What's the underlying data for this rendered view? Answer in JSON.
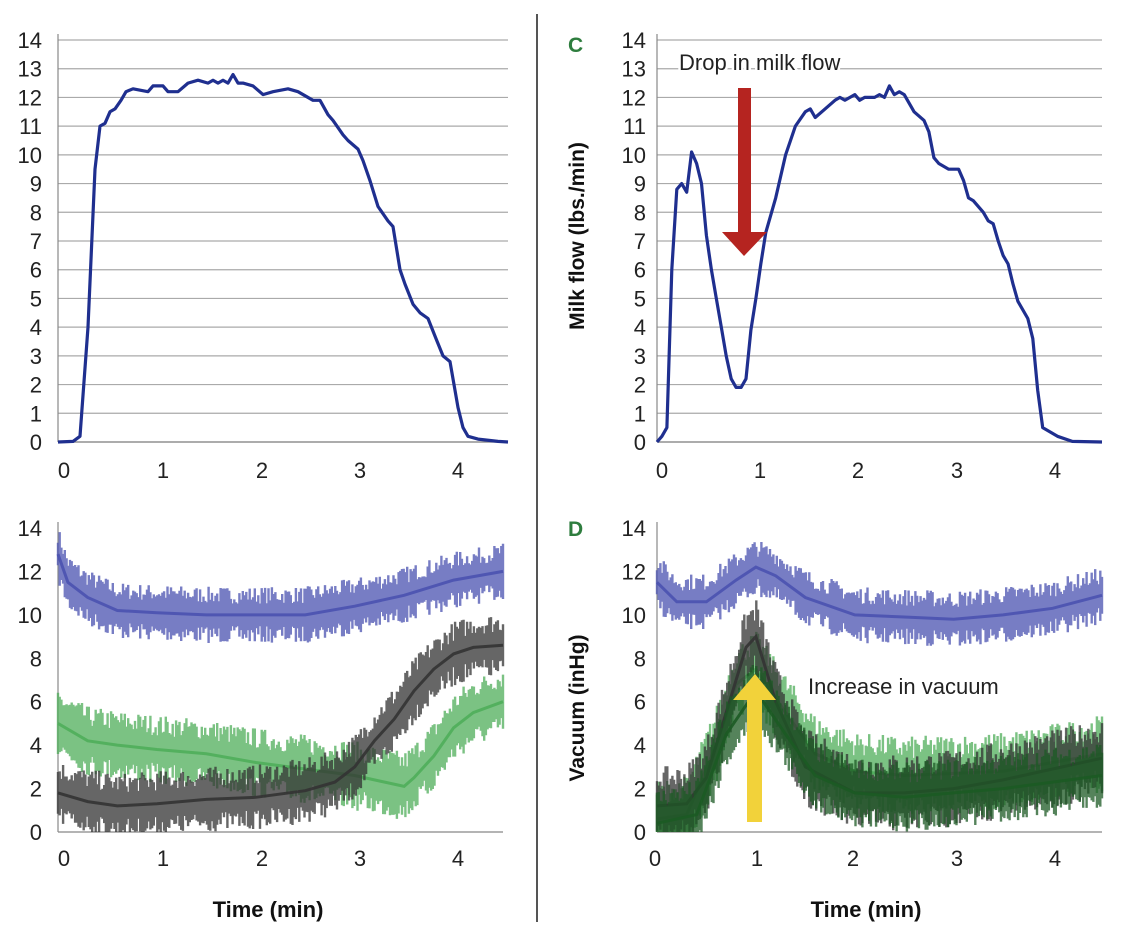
{
  "colors": {
    "flow_line": "#1f2f8f",
    "vacuum_blue": "#4a52b0",
    "vacuum_green": "#4fae5a",
    "vacuum_black": "#333333",
    "vacuum_dark_green": "#1c5a24",
    "red_arrow": "#b52420",
    "yellow_arrow": "#f2d23a",
    "grid": "#aaaaaa",
    "panel_label": "#2e7d3e"
  },
  "chart_data": [
    {
      "id": "top-left",
      "type": "line",
      "panel_label": "",
      "ylabel": "",
      "xlabel": "",
      "xlim": [
        0,
        4.5
      ],
      "ylim": [
        0,
        14
      ],
      "xticks": [
        "0",
        "1",
        "2",
        "3",
        "4"
      ],
      "yticks": [
        "0",
        "1",
        "2",
        "3",
        "4",
        "5",
        "6",
        "7",
        "8",
        "9",
        "10",
        "11",
        "12",
        "13",
        "14"
      ],
      "grid": "horizontal",
      "series": [
        {
          "name": "Milk flow",
          "color": "#1f2f8f",
          "x": [
            0,
            0.15,
            0.22,
            0.3,
            0.37,
            0.42,
            0.47,
            0.52,
            0.57,
            0.63,
            0.68,
            0.75,
            0.9,
            0.95,
            1.05,
            1.1,
            1.2,
            1.3,
            1.4,
            1.5,
            1.55,
            1.6,
            1.65,
            1.7,
            1.75,
            1.8,
            1.85,
            1.95,
            2.05,
            2.15,
            2.3,
            2.4,
            2.55,
            2.62,
            2.7,
            2.75,
            2.85,
            2.9,
            3.0,
            3.05,
            3.12,
            3.2,
            3.3,
            3.35,
            3.42,
            3.47,
            3.55,
            3.62,
            3.7,
            3.78,
            3.85,
            3.92,
            4.0,
            4.05,
            4.1,
            4.2,
            4.4,
            4.5
          ],
          "y": [
            0,
            0.02,
            0.2,
            4.0,
            9.5,
            11.0,
            11.1,
            11.5,
            11.6,
            11.9,
            12.2,
            12.3,
            12.2,
            12.4,
            12.4,
            12.2,
            12.2,
            12.5,
            12.6,
            12.5,
            12.6,
            12.5,
            12.6,
            12.5,
            12.8,
            12.5,
            12.5,
            12.4,
            12.1,
            12.2,
            12.3,
            12.2,
            11.9,
            11.9,
            11.4,
            11.2,
            10.7,
            10.5,
            10.2,
            9.8,
            9.1,
            8.2,
            7.7,
            7.5,
            6.0,
            5.5,
            4.8,
            4.5,
            4.3,
            3.6,
            3.0,
            2.8,
            1.2,
            0.5,
            0.2,
            0.1,
            0.02,
            0
          ]
        }
      ]
    },
    {
      "id": "top-right",
      "type": "line",
      "panel_label": "C",
      "ylabel": "Milk flow (lbs./min)",
      "xlabel": "",
      "xlim": [
        0,
        4.5
      ],
      "ylim": [
        0,
        14
      ],
      "xticks": [
        "0",
        "1",
        "2",
        "3",
        "4"
      ],
      "yticks": [
        "0",
        "1",
        "2",
        "3",
        "4",
        "5",
        "6",
        "7",
        "8",
        "9",
        "10",
        "11",
        "12",
        "13",
        "14"
      ],
      "grid": "horizontal",
      "annotation": "Drop in milk flow",
      "series": [
        {
          "name": "Milk flow",
          "color": "#1f2f8f",
          "x": [
            0,
            0.05,
            0.1,
            0.15,
            0.2,
            0.25,
            0.3,
            0.35,
            0.4,
            0.45,
            0.5,
            0.55,
            0.6,
            0.65,
            0.7,
            0.75,
            0.8,
            0.85,
            0.9,
            0.95,
            1.0,
            1.05,
            1.1,
            1.2,
            1.3,
            1.35,
            1.4,
            1.5,
            1.55,
            1.6,
            1.7,
            1.8,
            1.85,
            1.9,
            2.0,
            2.05,
            2.1,
            2.2,
            2.25,
            2.3,
            2.35,
            2.4,
            2.45,
            2.5,
            2.6,
            2.7,
            2.75,
            2.8,
            2.85,
            2.95,
            3.05,
            3.1,
            3.15,
            3.2,
            3.3,
            3.35,
            3.4,
            3.45,
            3.5,
            3.55,
            3.6,
            3.65,
            3.75,
            3.8,
            3.85,
            3.9,
            4.05,
            4.2,
            4.5
          ],
          "y": [
            0,
            0.2,
            0.5,
            6.0,
            8.8,
            9.0,
            8.7,
            10.1,
            9.7,
            9.0,
            7.2,
            6.0,
            5.0,
            4.0,
            3.0,
            2.2,
            1.9,
            1.9,
            2.2,
            3.9,
            5.0,
            6.2,
            7.3,
            8.5,
            10.0,
            10.5,
            11.0,
            11.5,
            11.6,
            11.3,
            11.6,
            11.9,
            12.0,
            11.9,
            12.1,
            11.9,
            12.0,
            12.0,
            12.1,
            12.0,
            12.4,
            12.1,
            12.2,
            12.1,
            11.5,
            11.2,
            10.8,
            9.9,
            9.7,
            9.5,
            9.5,
            9.1,
            8.5,
            8.4,
            8.0,
            7.7,
            7.6,
            7.0,
            6.5,
            6.2,
            5.5,
            4.9,
            4.3,
            3.6,
            1.8,
            0.5,
            0.2,
            0.02,
            0
          ]
        }
      ]
    },
    {
      "id": "bottom-left",
      "type": "line",
      "panel_label": "",
      "ylabel": "",
      "xlabel": "Time (min)",
      "xlim": [
        0,
        4.5
      ],
      "ylim": [
        0,
        14
      ],
      "xticks": [
        "0",
        "1",
        "2",
        "3",
        "4"
      ],
      "yticks": [
        "0",
        "2",
        "4",
        "6",
        "8",
        "10",
        "12",
        "14"
      ],
      "grid": "none",
      "series": [
        {
          "name": "Vacuum (blue trace)",
          "color": "#4a52b0",
          "amplitude": 1.3,
          "x": [
            0,
            0.1,
            0.3,
            0.6,
            1.0,
            1.5,
            2.0,
            2.5,
            3.0,
            3.5,
            4.0,
            4.5
          ],
          "y": [
            12.8,
            11.5,
            10.8,
            10.2,
            10.1,
            10.0,
            10.0,
            10.0,
            10.4,
            10.9,
            11.6,
            12.0
          ]
        },
        {
          "name": "Vacuum (green trace)",
          "color": "#4fae5a",
          "amplitude": 1.6,
          "x": [
            0,
            0.3,
            0.6,
            1.0,
            1.5,
            2.0,
            2.5,
            3.0,
            3.2,
            3.5,
            3.6,
            3.8,
            4.0,
            4.2,
            4.5
          ],
          "y": [
            5.0,
            4.2,
            4.0,
            3.8,
            3.6,
            3.2,
            2.9,
            2.6,
            2.4,
            2.1,
            2.5,
            3.5,
            4.8,
            5.5,
            6.0
          ]
        },
        {
          "name": "Vacuum (black trace)",
          "color": "#333333",
          "amplitude": 1.5,
          "x": [
            0,
            0.3,
            0.6,
            1.0,
            1.5,
            2.0,
            2.5,
            2.8,
            3.0,
            3.2,
            3.4,
            3.6,
            3.8,
            4.0,
            4.2,
            4.5
          ],
          "y": [
            1.8,
            1.4,
            1.2,
            1.3,
            1.5,
            1.6,
            1.9,
            2.3,
            3.0,
            4.2,
            5.2,
            6.5,
            7.5,
            8.2,
            8.5,
            8.6
          ]
        }
      ]
    },
    {
      "id": "bottom-right",
      "type": "line",
      "panel_label": "D",
      "ylabel": "Vacuum (inHg)",
      "xlabel": "Time (min)",
      "xlim": [
        0,
        4.5
      ],
      "ylim": [
        0,
        14
      ],
      "xticks": [
        "0",
        "1",
        "2",
        "3",
        "4"
      ],
      "yticks": [
        "0",
        "2",
        "4",
        "6",
        "8",
        "10",
        "12",
        "14"
      ],
      "grid": "none",
      "annotation": "Increase in vacuum",
      "series": [
        {
          "name": "Vacuum (blue trace)",
          "color": "#4a52b0",
          "amplitude": 1.3,
          "x": [
            0,
            0.2,
            0.5,
            0.8,
            1.0,
            1.2,
            1.5,
            2.0,
            2.5,
            3.0,
            3.5,
            4.0,
            4.5
          ],
          "y": [
            11.5,
            10.6,
            10.6,
            11.6,
            12.2,
            11.8,
            10.8,
            10.0,
            9.9,
            9.8,
            10.0,
            10.3,
            10.9
          ]
        },
        {
          "name": "Vacuum (green trace)",
          "color": "#4fae5a",
          "amplitude": 1.8,
          "x": [
            0,
            0.3,
            0.6,
            0.8,
            1.0,
            1.3,
            1.6,
            2.0,
            2.5,
            3.0,
            3.5,
            4.0,
            4.5
          ],
          "y": [
            0.6,
            0.8,
            4.0,
            6.8,
            7.5,
            5.5,
            3.6,
            2.8,
            2.6,
            2.7,
            2.8,
            3.2,
            3.6
          ]
        },
        {
          "name": "Vacuum (black trace)",
          "color": "#333333",
          "amplitude": 1.8,
          "x": [
            0,
            0.3,
            0.5,
            0.7,
            0.9,
            1.0,
            1.2,
            1.5,
            2.0,
            2.5,
            3.0,
            3.5,
            4.0,
            4.5
          ],
          "y": [
            1.2,
            1.3,
            2.5,
            5.5,
            8.5,
            9.0,
            6.0,
            3.0,
            1.8,
            1.8,
            2.0,
            2.4,
            2.9,
            3.4
          ]
        },
        {
          "name": "Vacuum (dark green trace)",
          "color": "#1c5a24",
          "amplitude": 1.6,
          "x": [
            0,
            0.4,
            0.7,
            1.0,
            1.3,
            1.6,
            2.0,
            2.5,
            3.0,
            3.5,
            4.0,
            4.5
          ],
          "y": [
            0.4,
            0.8,
            4.5,
            6.5,
            4.5,
            2.6,
            1.8,
            1.6,
            1.8,
            2.0,
            2.3,
            2.6
          ]
        }
      ]
    }
  ]
}
